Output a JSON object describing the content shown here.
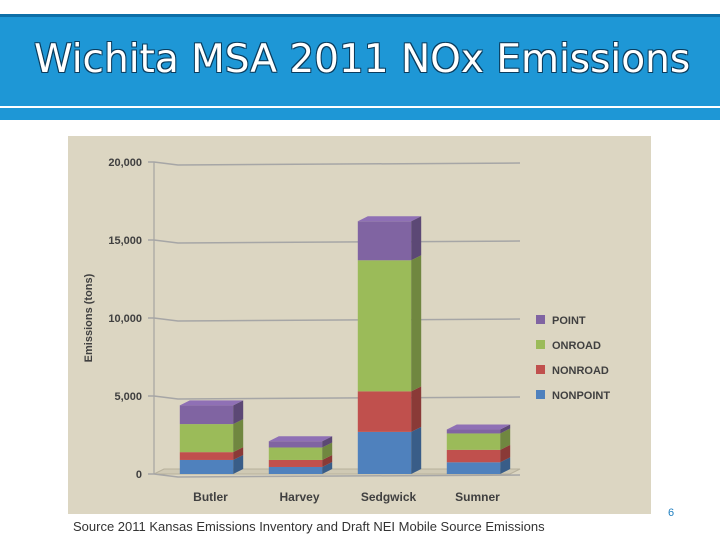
{
  "slide": {
    "title": "Wichita MSA 2011 NOx Emissions",
    "source": "Source 2011 Kansas Emissions Inventory and Draft NEI Mobile Source Emissions",
    "page_number": "6"
  },
  "chart_data": {
    "type": "bar",
    "stacked": true,
    "three_d": true,
    "title": "",
    "xlabel": "",
    "ylabel": "Emissions (tons)",
    "ylim": [
      0,
      20000
    ],
    "yticks": [
      0,
      5000,
      10000,
      15000,
      20000
    ],
    "ytick_labels": [
      "0",
      "5,000",
      "10,000",
      "15,000",
      "20,000"
    ],
    "grid": true,
    "legend_position": "right",
    "categories": [
      "Butler",
      "Harvey",
      "Sedgwick",
      "Sumner"
    ],
    "series": [
      {
        "name": "NONPOINT",
        "color": "#4f81bd",
        "values": [
          900,
          450,
          2700,
          750
        ]
      },
      {
        "name": "NONROAD",
        "color": "#c0504d",
        "values": [
          500,
          450,
          2600,
          800
        ]
      },
      {
        "name": "ONROAD",
        "color": "#9bbb59",
        "values": [
          1800,
          800,
          8400,
          1050
        ]
      },
      {
        "name": "POINT",
        "color": "#8064a2",
        "values": [
          1200,
          400,
          2500,
          250
        ]
      }
    ]
  }
}
